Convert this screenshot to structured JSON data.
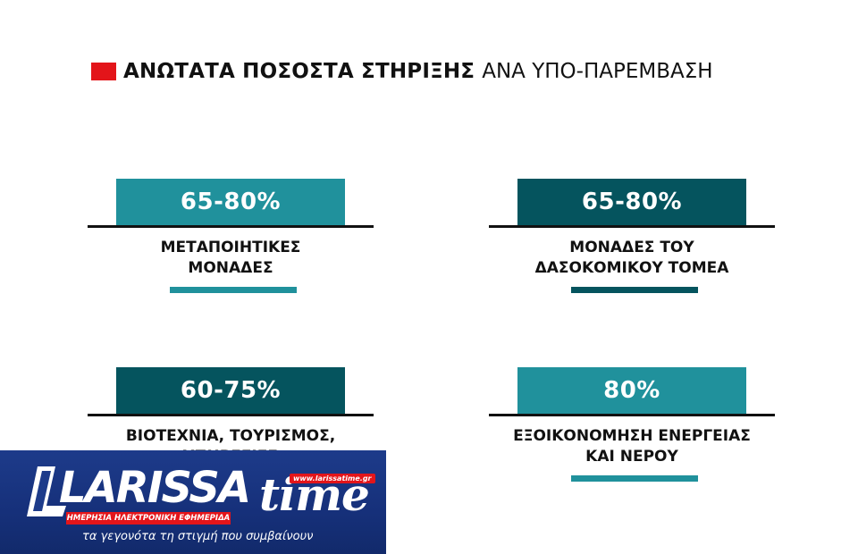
{
  "header": {
    "title_bold": "ΑΝΩΤΑΤΑ ΠΟΣΟΣΤΑ ΣΤΗΡΙΞΗΣ",
    "title_light": "ΑΝΑ ΥΠΟ-ΠΑΡΕΜΒΑΣΗ",
    "accent_color": "#e3151a"
  },
  "cards": [
    {
      "value": "65-80%",
      "label": "ΜΕΤΑΠΟΙΗΤΙΚΕΣ\nΜΟΝΑΔΕΣ",
      "color": "#20919c"
    },
    {
      "value": "65-80%",
      "label": "ΜΟΝΑΔΕΣ ΤΟΥ\nΔΑΣΟΚΟΜΙΚΟΥ ΤΟΜΕΑ",
      "color": "#05545e"
    },
    {
      "value": "60-75%",
      "label": "ΒΙΟΤΕΧΝΙΑ, ΤΟΥΡΙΣΜΟΣ,\nΥΠΗΡΕΣΙΕΣ",
      "color": "#05545e"
    },
    {
      "value": "80%",
      "label": "ΕΞΟΙΚΟΝΟΜΗΣΗ ΕΝΕΡΓΕΙΑΣ\nΚΑΙ ΝΕΡΟΥ",
      "color": "#20919c"
    }
  ],
  "logo": {
    "brand": "LARISSA",
    "brand_suffix": "time",
    "url": "www.larissatime.gr",
    "subtitle": "ΗΜΕΡΗΣΙΑ ΗΛΕΚΤΡΟΝΙΚΗ ΕΦΗΜΕΡΙΔΑ",
    "slogan": "τα γεγονότα τη στιγμή που συμβαίνουν",
    "background_color": "#16307a"
  }
}
